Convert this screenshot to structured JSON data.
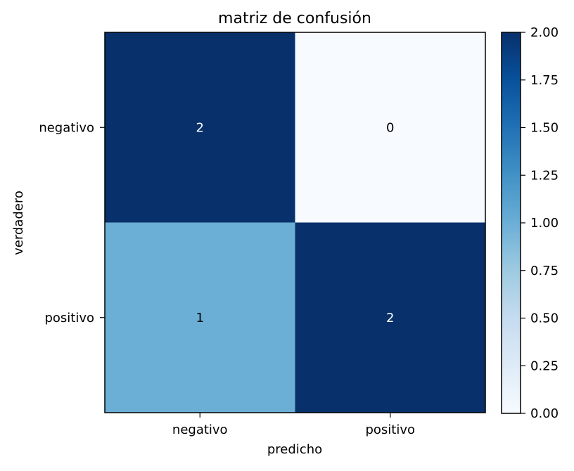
{
  "chart_data": {
    "type": "heatmap",
    "title": "matriz de confusión",
    "xlabel": "predicho",
    "ylabel": "verdadero",
    "x_categories": [
      "negativo",
      "positivo"
    ],
    "y_categories": [
      "negativo",
      "positivo"
    ],
    "values": [
      [
        2,
        0
      ],
      [
        1,
        2
      ]
    ],
    "cell_labels": [
      [
        "2",
        "0"
      ],
      [
        "1",
        "2"
      ]
    ],
    "colormap": "Blues",
    "colorbar": {
      "range": [
        0,
        2
      ],
      "ticks": [
        "0.00",
        "0.25",
        "0.50",
        "0.75",
        "1.00",
        "1.25",
        "1.50",
        "1.75",
        "2.00"
      ]
    },
    "cell_text_colors": {
      "on_dark": "#ffffff",
      "on_light": "#000000"
    },
    "grid": false
  }
}
